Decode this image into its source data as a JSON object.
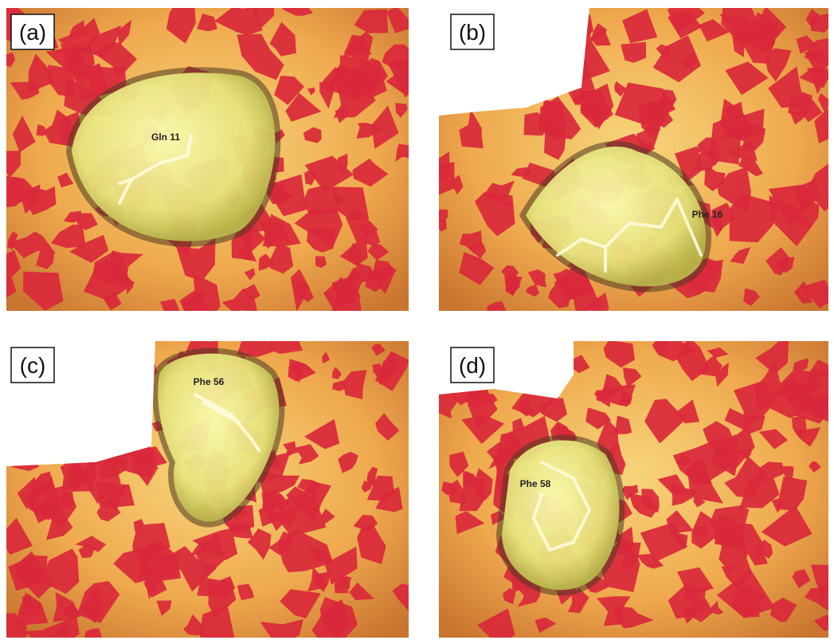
{
  "panels": [
    {
      "label": "(a)",
      "residue": "Gln 11"
    },
    {
      "label": "(b)",
      "residue": "Phe 16"
    },
    {
      "label": "(c)",
      "residue": "Phe 56"
    },
    {
      "label": "(d)",
      "residue": "Phe 58"
    }
  ]
}
